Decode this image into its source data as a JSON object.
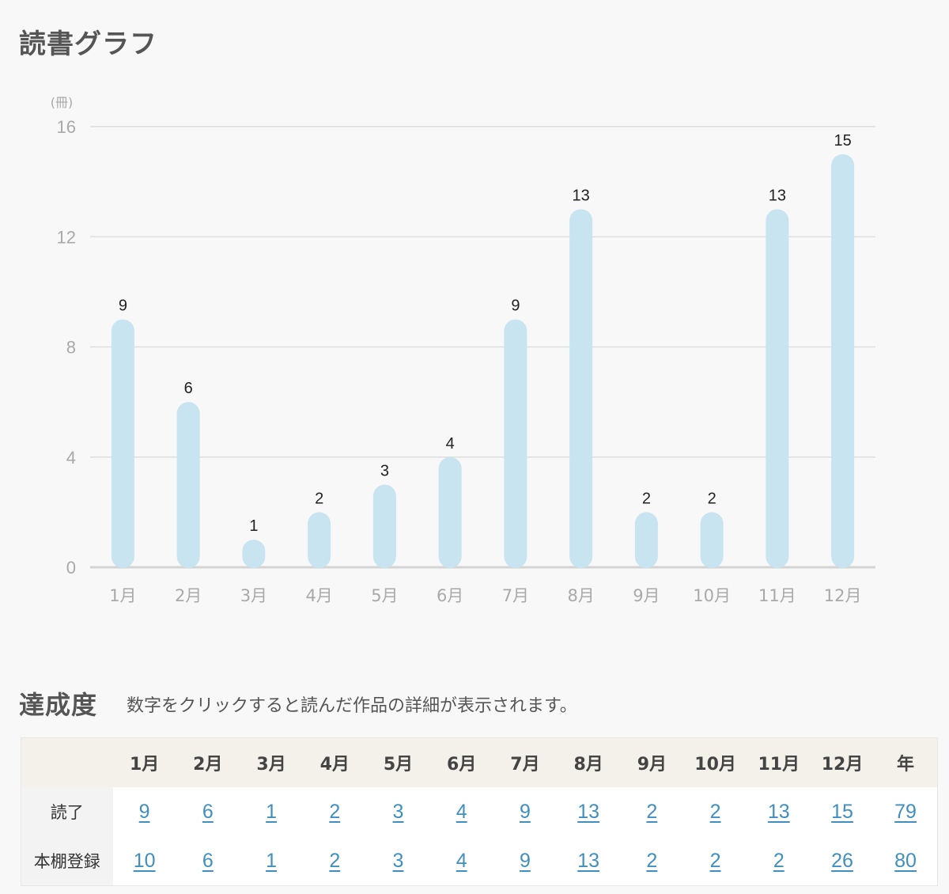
{
  "graph_section": {
    "title": "読書グラフ"
  },
  "chart_data": {
    "type": "bar",
    "title": "",
    "ylabel": "(冊)",
    "xlabel": "",
    "categories": [
      "1月",
      "2月",
      "3月",
      "4月",
      "5月",
      "6月",
      "7月",
      "8月",
      "9月",
      "10月",
      "11月",
      "12月"
    ],
    "values": [
      9,
      6,
      1,
      2,
      3,
      4,
      9,
      13,
      2,
      2,
      13,
      15
    ],
    "yticks": [
      0,
      4,
      8,
      12,
      16
    ],
    "ylim": [
      0,
      16
    ],
    "grid": true,
    "bar_color": "#c7e4f0",
    "data_labels": true
  },
  "achievement_section": {
    "title": "達成度",
    "note": "数字をクリックすると読んだ作品の詳細が表示されます。",
    "table": {
      "headers": [
        "",
        "1月",
        "2月",
        "3月",
        "4月",
        "5月",
        "6月",
        "7月",
        "8月",
        "9月",
        "10月",
        "11月",
        "12月",
        "年"
      ],
      "rows": [
        {
          "label": "読了",
          "values": [
            "9",
            "6",
            "1",
            "2",
            "3",
            "4",
            "9",
            "13",
            "2",
            "2",
            "13",
            "15",
            "79"
          ]
        },
        {
          "label": "本棚登録",
          "values": [
            "10",
            "6",
            "1",
            "2",
            "3",
            "4",
            "9",
            "13",
            "2",
            "2",
            "2",
            "26",
            "80"
          ]
        }
      ]
    }
  },
  "colors": {
    "link": "#3f8fbf",
    "bar": "#c7e4f0",
    "header_bg": "#f3f1ea"
  }
}
